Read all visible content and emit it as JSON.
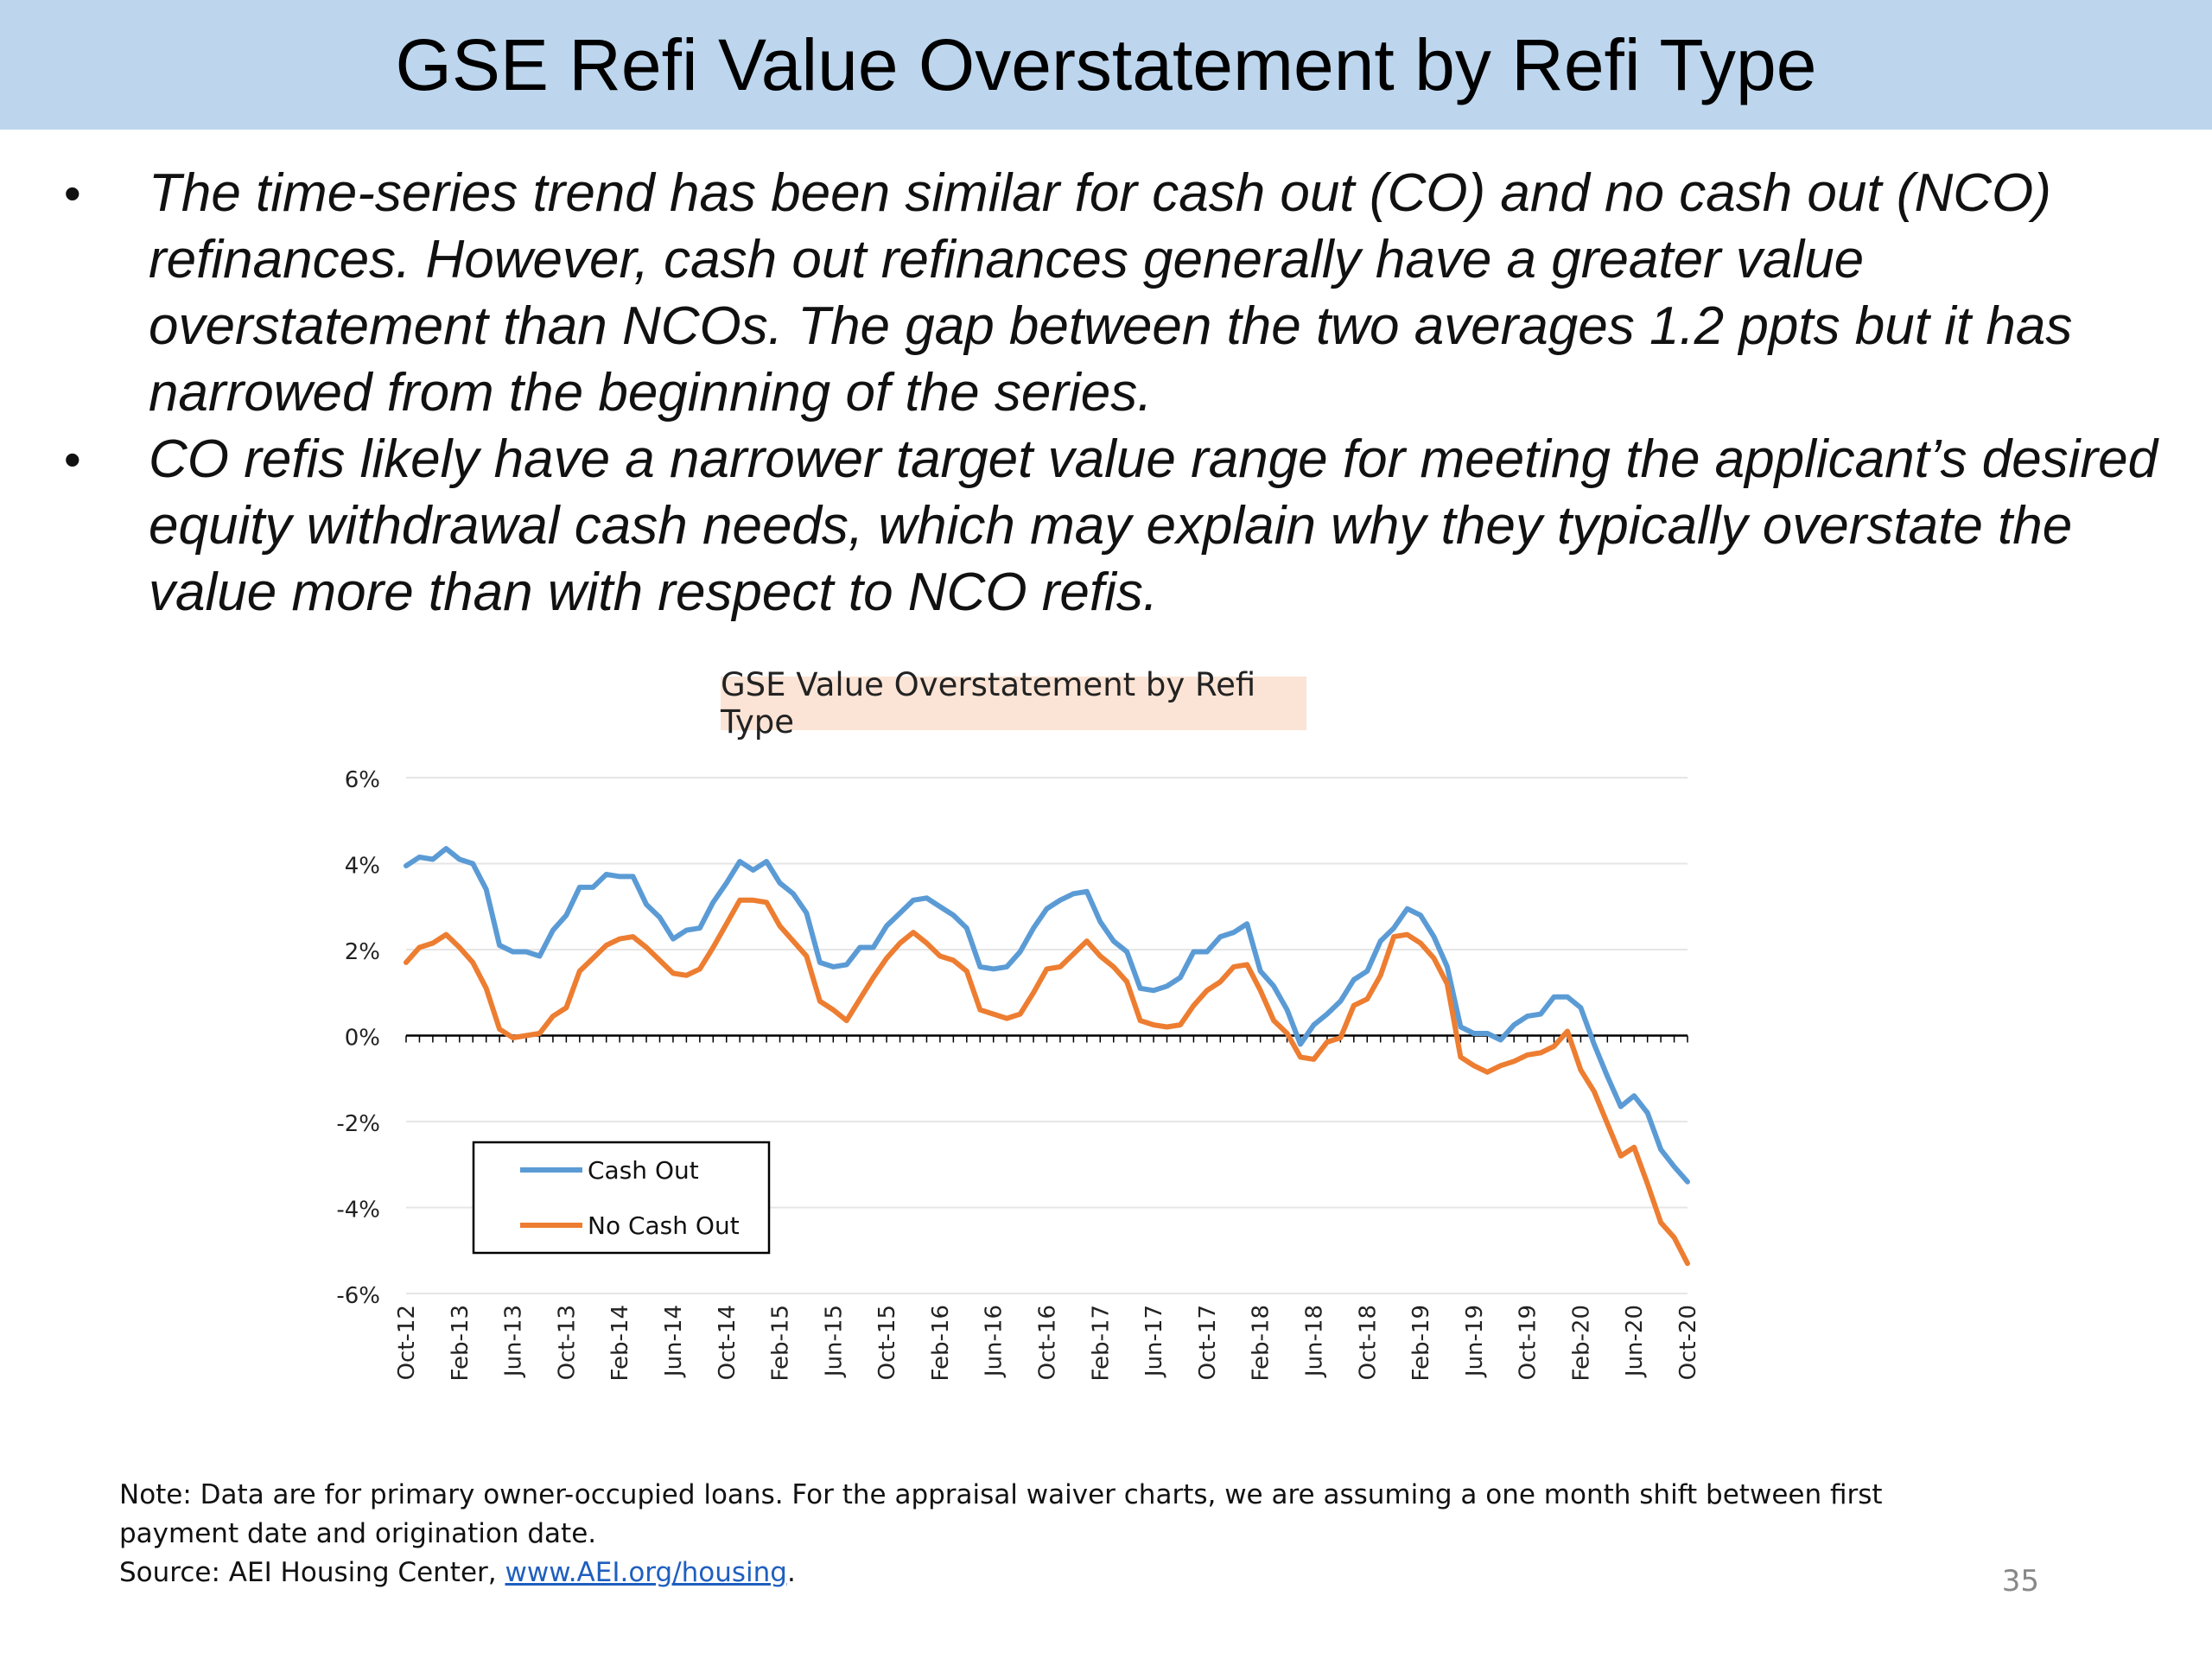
{
  "slide": {
    "title": "GSE Refi Value Overstatement by Refi Type",
    "bullet_marker": "•",
    "bullets": [
      "The time-series trend has been similar for cash out (CO) and no cash out (NCO) refinances. However, cash out refinances generally have a greater value overstatement than NCOs. The gap between the two averages 1.2 ppts but it has narrowed from the beginning of the series.",
      "CO refis likely have a narrower target value range for meeting the applicant’s desired equity withdrawal cash needs, which may explain why they typically overstate the value more than with respect to NCO refis."
    ],
    "note_line": "Note: Data are for primary owner-occupied loans. For the appraisal waiver charts, we are assuming a one month shift between first payment date and origination date.",
    "source_prefix": "Source: AEI Housing Center, ",
    "source_link": "www.AEI.org/housing",
    "source_suffix": ".",
    "page_number": "35"
  },
  "chart_data": {
    "type": "line",
    "title": "GSE Value Overstatement by Refi Type",
    "xlabel": "",
    "ylabel": "",
    "ylim": [
      -6,
      6
    ],
    "y_ticks": [
      "6%",
      "4%",
      "2%",
      "0%",
      "-2%",
      "-4%",
      "-6%"
    ],
    "y_tick_values": [
      6,
      4,
      2,
      0,
      -2,
      -4,
      -6
    ],
    "x_tick_labels": [
      "Oct-12",
      "Feb-13",
      "Jun-13",
      "Oct-13",
      "Feb-14",
      "Jun-14",
      "Oct-14",
      "Feb-15",
      "Jun-15",
      "Oct-15",
      "Feb-16",
      "Jun-16",
      "Oct-16",
      "Feb-17",
      "Jun-17",
      "Oct-17",
      "Feb-18",
      "Jun-18",
      "Oct-18",
      "Feb-19",
      "Jun-19",
      "Oct-19",
      "Feb-20",
      "Jun-20",
      "Oct-20"
    ],
    "x_start": "Oct-12",
    "x_end": "Oct-20",
    "x_frequency": "monthly",
    "grid": true,
    "legend_position": "bottom-left",
    "colors": {
      "Cash Out": "#5b9bd5",
      "No Cash Out": "#ed7d31"
    },
    "series": [
      {
        "name": "Cash Out",
        "values": [
          3.95,
          4.15,
          4.1,
          4.35,
          4.1,
          4.0,
          3.4,
          2.1,
          1.95,
          1.95,
          1.85,
          2.45,
          2.8,
          3.45,
          3.45,
          3.75,
          3.7,
          3.7,
          3.05,
          2.75,
          2.25,
          2.45,
          2.5,
          3.1,
          3.55,
          4.05,
          3.85,
          4.05,
          3.55,
          3.3,
          2.85,
          1.7,
          1.6,
          1.65,
          2.05,
          2.05,
          2.55,
          2.85,
          3.15,
          3.2,
          3.0,
          2.8,
          2.5,
          1.6,
          1.55,
          1.6,
          1.95,
          2.5,
          2.95,
          3.15,
          3.3,
          3.35,
          2.65,
          2.2,
          1.95,
          1.1,
          1.05,
          1.15,
          1.35,
          1.95,
          1.95,
          2.3,
          2.4,
          2.6,
          1.5,
          1.15,
          0.6,
          -0.2,
          0.25,
          0.5,
          0.8,
          1.3,
          1.5,
          2.2,
          2.5,
          2.95,
          2.8,
          2.3,
          1.6,
          0.2,
          0.05,
          0.05,
          -0.1,
          0.25,
          0.45,
          0.5,
          0.9,
          0.9,
          0.65,
          -0.2,
          -0.95,
          -1.65,
          -1.4,
          -1.8,
          -2.65,
          -3.05,
          -3.4
        ]
      },
      {
        "name": "No Cash Out",
        "values": [
          1.7,
          2.05,
          2.15,
          2.35,
          2.05,
          1.7,
          1.1,
          0.15,
          -0.05,
          0.0,
          0.05,
          0.45,
          0.65,
          1.5,
          1.8,
          2.1,
          2.25,
          2.3,
          2.05,
          1.75,
          1.45,
          1.4,
          1.55,
          2.05,
          2.6,
          3.15,
          3.15,
          3.1,
          2.55,
          2.2,
          1.85,
          0.8,
          0.6,
          0.35,
          0.85,
          1.35,
          1.8,
          2.15,
          2.4,
          2.15,
          1.85,
          1.75,
          1.5,
          0.6,
          0.5,
          0.4,
          0.5,
          1.0,
          1.55,
          1.6,
          1.9,
          2.2,
          1.85,
          1.6,
          1.25,
          0.35,
          0.25,
          0.2,
          0.25,
          0.7,
          1.05,
          1.25,
          1.6,
          1.65,
          1.05,
          0.35,
          0.05,
          -0.5,
          -0.55,
          -0.15,
          -0.05,
          0.7,
          0.85,
          1.4,
          2.3,
          2.35,
          2.15,
          1.8,
          1.2,
          -0.5,
          -0.7,
          -0.85,
          -0.7,
          -0.6,
          -0.45,
          -0.4,
          -0.25,
          0.1,
          -0.8,
          -1.3,
          -2.05,
          -2.8,
          -2.6,
          -3.45,
          -4.35,
          -4.7,
          -5.3
        ]
      }
    ]
  }
}
